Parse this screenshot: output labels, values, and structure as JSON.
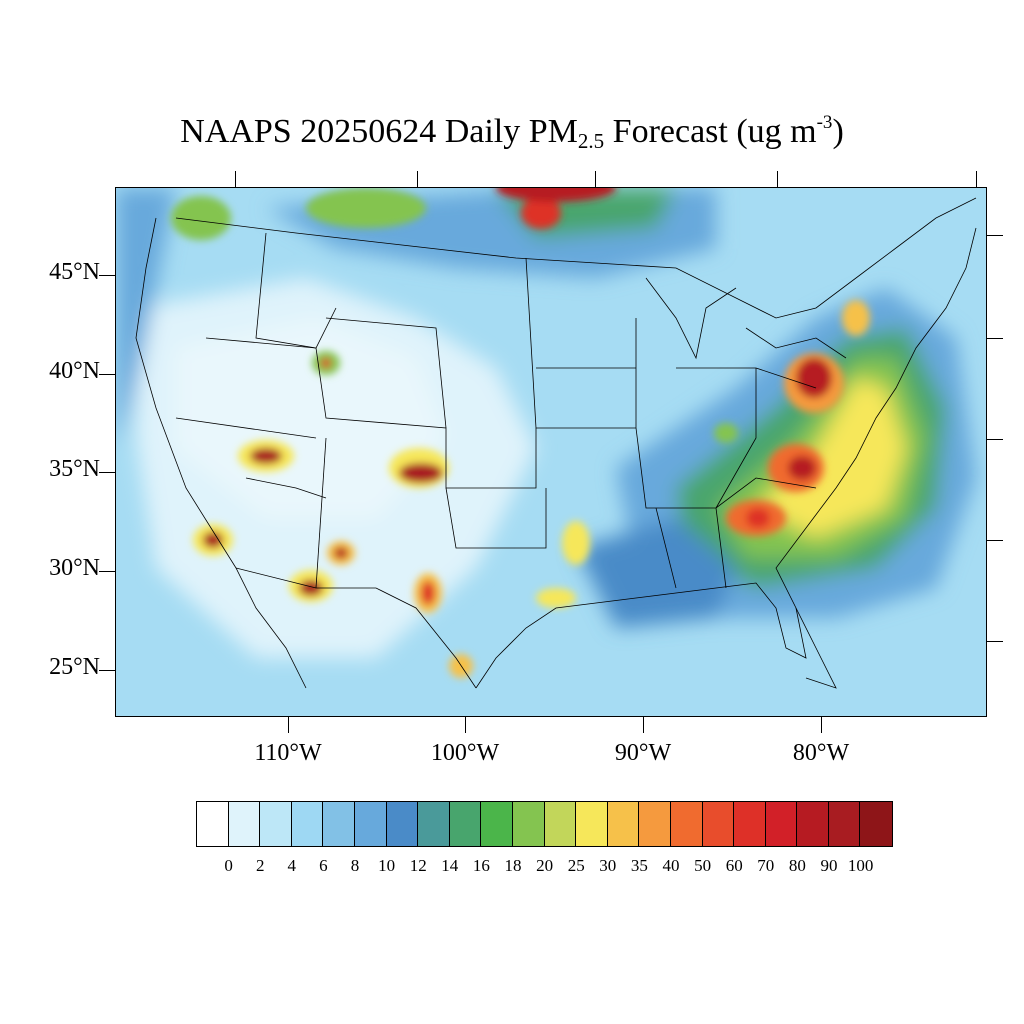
{
  "title": {
    "main": "NAAPS 20250624 Daily PM",
    "sub": "2.5",
    "rest": " Forecast (ug m",
    "sup": "-3",
    "close": ")"
  },
  "map": {
    "lon_range": [
      -119,
      -70
    ],
    "lat_range": [
      22.5,
      49.5
    ],
    "lat_labels": [
      "45°N",
      "40°N",
      "35°N",
      "30°N",
      "25°N"
    ],
    "lon_labels": [
      "110°W",
      "100°W",
      "90°W",
      "80°W"
    ],
    "background_color": "#a6dcf3"
  },
  "colorbar": {
    "labels": [
      "0",
      "2",
      "4",
      "6",
      "8",
      "10",
      "12",
      "14",
      "16",
      "18",
      "20",
      "25",
      "30",
      "35",
      "40",
      "50",
      "60",
      "70",
      "80",
      "90",
      "100"
    ],
    "colors": [
      "#ffffff",
      "#dff3fb",
      "#bde7f7",
      "#9ed8f3",
      "#82c1e6",
      "#67a9dc",
      "#4a8bc8",
      "#4a9a9a",
      "#48a56d",
      "#4bb54a",
      "#84c450",
      "#c2d65a",
      "#f6e75a",
      "#f6c14a",
      "#f59a3e",
      "#f06b2f",
      "#e84d2c",
      "#de3028",
      "#d22028",
      "#b61b22",
      "#a81c21",
      "#8e1518"
    ]
  }
}
